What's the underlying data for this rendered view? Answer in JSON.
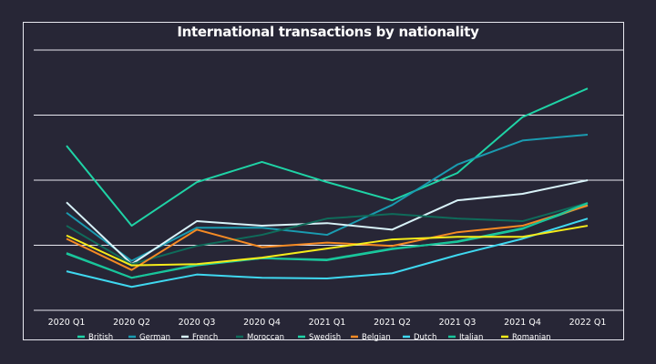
{
  "chart_data": {
    "type": "line",
    "title": "International transactions by nationality",
    "xlabel": "",
    "ylabel": "",
    "categories": [
      "2020 Q1",
      "2020 Q2",
      "2020 Q3",
      "2020 Q4",
      "2021 Q1",
      "2021 Q2",
      "2021 Q3",
      "2021 Q4",
      "2022 Q1"
    ],
    "ylim": [
      0,
      4
    ],
    "y_tick_labels_shown": false,
    "grid": "horizontal",
    "legend_placement": "bottom",
    "series": [
      {
        "name": "British",
        "color": "#1fd3a6",
        "values": [
          2.53,
          1.3,
          1.97,
          2.28,
          1.97,
          1.69,
          2.11,
          2.97,
          3.41
        ]
      },
      {
        "name": "German",
        "color": "#1a9bb0",
        "values": [
          1.5,
          0.76,
          1.27,
          1.27,
          1.16,
          1.62,
          2.24,
          2.61,
          2.7
        ]
      },
      {
        "name": "French",
        "color": "#d8f2f8",
        "values": [
          1.66,
          0.71,
          1.37,
          1.3,
          1.34,
          1.24,
          1.69,
          1.79,
          2.0
        ]
      },
      {
        "name": "Moroccan",
        "color": "#0f6b5a",
        "values": [
          1.3,
          0.71,
          0.99,
          1.16,
          1.41,
          1.48,
          1.41,
          1.37,
          1.65
        ]
      },
      {
        "name": "Swedish",
        "color": "#1fd3a6",
        "values": [
          0.87,
          0.5,
          0.69,
          0.8,
          0.77,
          0.94,
          1.06,
          1.26,
          1.62
        ]
      },
      {
        "name": "Belgian",
        "color": "#f58a24",
        "values": [
          1.1,
          0.62,
          1.24,
          0.97,
          1.04,
          0.99,
          1.2,
          1.3,
          1.61
        ]
      },
      {
        "name": "Dutch",
        "color": "#3fd8f0",
        "values": [
          0.6,
          0.36,
          0.55,
          0.5,
          0.49,
          0.57,
          0.85,
          1.1,
          1.41
        ]
      },
      {
        "name": "Italian",
        "color": "#18c49a",
        "values": [
          0.88,
          0.5,
          0.7,
          0.8,
          0.78,
          0.95,
          1.05,
          1.25,
          1.65
        ]
      },
      {
        "name": "Romanian",
        "color": "#f5ec1a",
        "values": [
          1.15,
          0.69,
          0.71,
          0.81,
          0.95,
          1.09,
          1.13,
          1.13,
          1.3
        ]
      }
    ]
  }
}
